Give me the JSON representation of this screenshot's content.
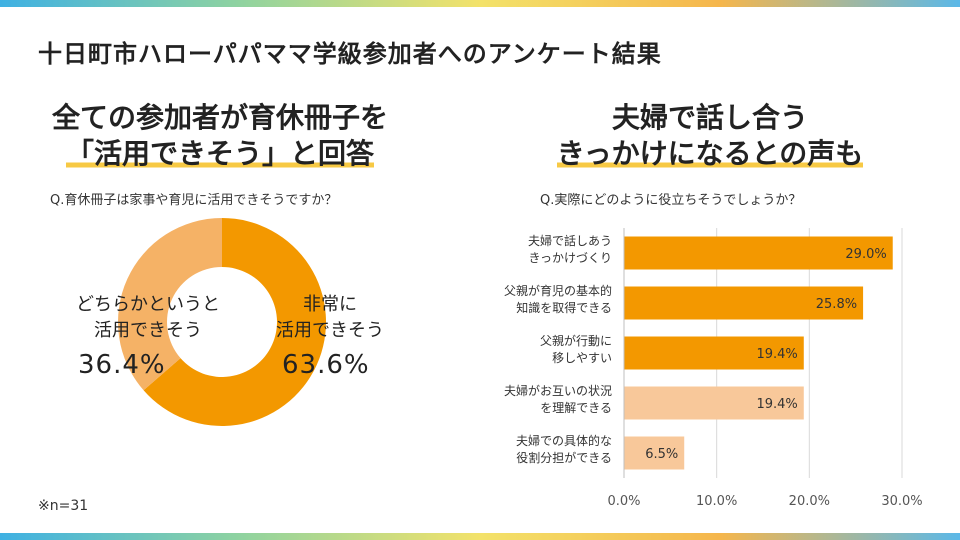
{
  "title": "十日町市ハローパパママ学級参加者へのアンケート結果",
  "left": {
    "headline_line1": "全ての参加者が育休冊子を",
    "headline_line2": "「活用できそう」と回答",
    "question": "Q.育休冊子は家事や育児に活用できそうですか？"
  },
  "right": {
    "headline_line1": "夫婦で話し合う",
    "headline_line2": "きっかけになるとの声も",
    "question": "Q.実際にどのように役立ちそうでしょうか？"
  },
  "note": "※n=31",
  "colors": {
    "primary": "#f39800",
    "light": "#f5b266",
    "pale": "#f8c89a",
    "text": "#222222"
  },
  "chart_data": [
    {
      "type": "pie",
      "subtype": "donut",
      "slices": [
        {
          "label_line1": "非常に",
          "label_line2": "活用できそう",
          "value": 63.6,
          "pct_label": "63.6%",
          "color": "#f39800"
        },
        {
          "label_line1": "どちらかというと",
          "label_line2": "活用できそう",
          "value": 36.4,
          "pct_label": "36.4%",
          "color": "#f5b266"
        }
      ]
    },
    {
      "type": "bar",
      "orientation": "horizontal",
      "categories": [
        [
          "夫婦で話しあう",
          "きっかけづくり"
        ],
        [
          "父親が育児の基本的",
          "知識を取得できる"
        ],
        [
          "父親が行動に",
          "移しやすい"
        ],
        [
          "夫婦がお互いの状況",
          "を理解できる"
        ],
        [
          "夫婦での具体的な",
          "役割分担ができる"
        ]
      ],
      "values": [
        29.0,
        25.8,
        19.4,
        19.4,
        6.5
      ],
      "value_labels": [
        "29.0%",
        "25.8%",
        "19.4%",
        "19.4%",
        "6.5%"
      ],
      "bar_colors": [
        "#f39800",
        "#f39800",
        "#f39800",
        "#f8c89a",
        "#f8c89a"
      ],
      "xlim": [
        0,
        30
      ],
      "xticks": [
        "0.0%",
        "10.0%",
        "20.0%",
        "30.0%"
      ],
      "xtick_values": [
        0,
        10,
        20,
        30
      ],
      "grid": true
    }
  ]
}
